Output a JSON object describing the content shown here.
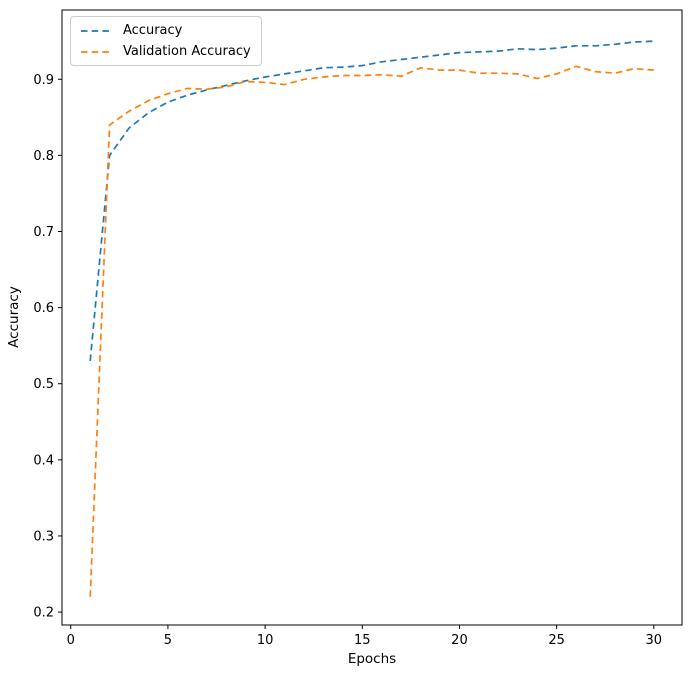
{
  "chart_data": {
    "type": "line",
    "title": "",
    "xlabel": "Epochs",
    "ylabel": "Accuracy",
    "grid": false,
    "background": "#ffffff",
    "axes_color": "#000000",
    "legend_position": "upper left",
    "x": [
      1,
      2,
      3,
      4,
      5,
      6,
      7,
      8,
      9,
      10,
      11,
      12,
      13,
      14,
      15,
      16,
      17,
      18,
      19,
      20,
      21,
      22,
      23,
      24,
      25,
      26,
      27,
      28,
      29,
      30
    ],
    "series": [
      {
        "name": "Accuracy",
        "color": "#1f77b4",
        "linestyle": "dashed",
        "values": [
          0.53,
          0.8,
          0.836,
          0.856,
          0.87,
          0.879,
          0.886,
          0.892,
          0.898,
          0.903,
          0.907,
          0.911,
          0.915,
          0.916,
          0.918,
          0.923,
          0.926,
          0.929,
          0.932,
          0.935,
          0.936,
          0.937,
          0.94,
          0.939,
          0.941,
          0.944,
          0.944,
          0.946,
          0.949,
          0.95
        ]
      },
      {
        "name": "Validation Accuracy",
        "color": "#ff7f0e",
        "linestyle": "dashed",
        "values": [
          0.22,
          0.84,
          0.858,
          0.872,
          0.881,
          0.888,
          0.887,
          0.89,
          0.897,
          0.896,
          0.893,
          0.9,
          0.903,
          0.905,
          0.905,
          0.906,
          0.904,
          0.915,
          0.912,
          0.912,
          0.908,
          0.908,
          0.907,
          0.901,
          0.907,
          0.917,
          0.91,
          0.908,
          0.914,
          0.912
        ]
      }
    ],
    "xlim": [
      -0.45,
      31.45
    ],
    "ylim": [
      0.183,
      0.991
    ],
    "xticks": [
      0,
      5,
      10,
      15,
      20,
      25,
      30
    ],
    "xtick_labels": [
      "0",
      "5",
      "10",
      "15",
      "20",
      "25",
      "30"
    ],
    "yticks": [
      0.2,
      0.3,
      0.4,
      0.5,
      0.6,
      0.7,
      0.8,
      0.9
    ],
    "ytick_labels": [
      "0.2",
      "0.3",
      "0.4",
      "0.5",
      "0.6",
      "0.7",
      "0.8",
      "0.9"
    ]
  }
}
